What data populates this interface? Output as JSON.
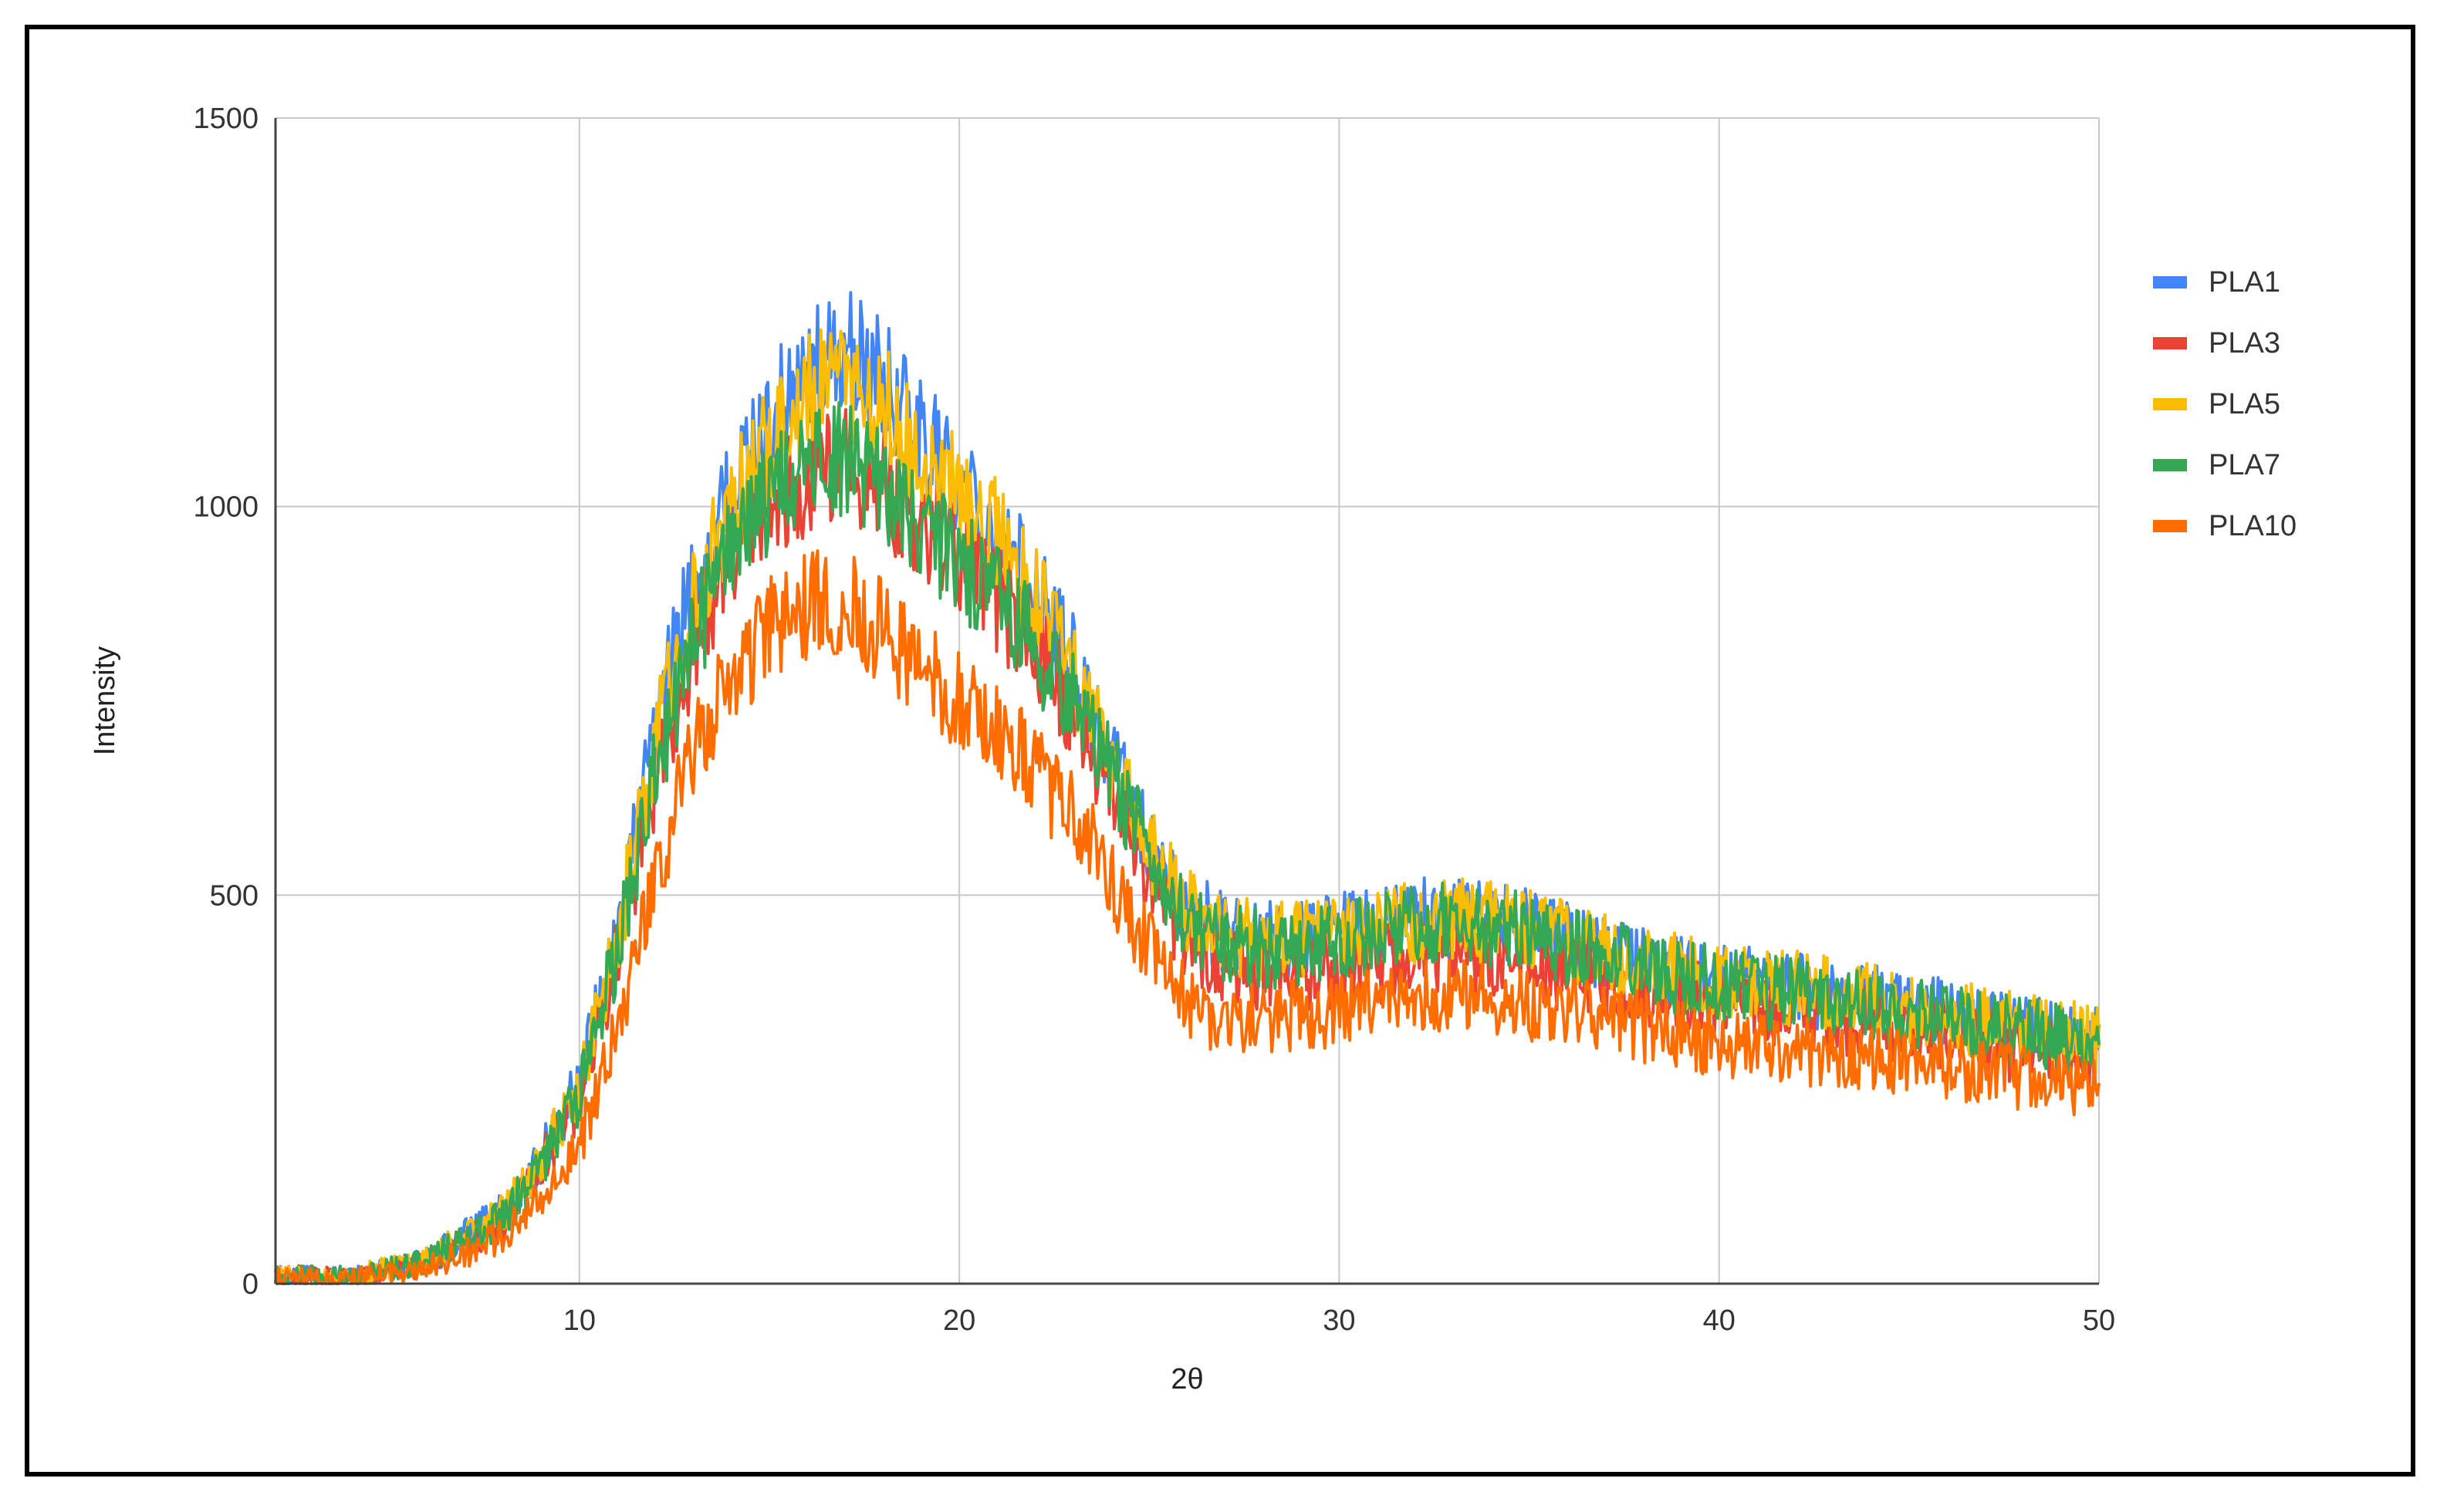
{
  "chart_data": {
    "type": "line",
    "title": "",
    "xlabel": "2θ",
    "ylabel": "Intensity",
    "xlim": [
      2,
      50
    ],
    "ylim": [
      0,
      1500
    ],
    "x_ticks": [
      10,
      20,
      30,
      40,
      50
    ],
    "y_ticks": [
      0,
      500,
      1000,
      1500
    ],
    "grid": true,
    "legend_position": "right",
    "x": [
      2,
      4,
      6,
      8,
      9,
      10,
      11,
      12,
      13,
      14,
      15,
      16,
      17,
      18,
      19,
      20,
      21,
      22,
      23,
      24,
      25,
      26,
      27,
      28,
      29,
      30,
      31,
      32,
      33,
      34,
      35,
      36,
      38,
      40,
      42,
      44,
      46,
      48,
      50
    ],
    "series": [
      {
        "name": "PLA1",
        "color": "#4285F4",
        "values": [
          10,
          10,
          30,
          90,
          160,
          260,
          450,
          720,
          900,
          1020,
          1110,
          1170,
          1200,
          1160,
          1090,
          1030,
          970,
          890,
          800,
          680,
          560,
          480,
          450,
          440,
          440,
          450,
          460,
          470,
          470,
          465,
          455,
          440,
          410,
          390,
          380,
          365,
          345,
          330,
          310
        ]
      },
      {
        "name": "PLA3",
        "color": "#EA4335",
        "values": [
          10,
          10,
          25,
          80,
          150,
          240,
          420,
          650,
          820,
          930,
          1000,
          1040,
          1060,
          1030,
          970,
          930,
          880,
          820,
          740,
          640,
          530,
          440,
          410,
          400,
          400,
          405,
          410,
          420,
          425,
          420,
          410,
          400,
          380,
          365,
          350,
          335,
          320,
          300,
          285
        ]
      },
      {
        "name": "PLA5",
        "color": "#FBBC04",
        "values": [
          10,
          10,
          30,
          90,
          160,
          255,
          445,
          700,
          880,
          1000,
          1080,
          1140,
          1160,
          1130,
          1070,
          1020,
          960,
          880,
          790,
          680,
          560,
          480,
          450,
          440,
          440,
          450,
          460,
          465,
          470,
          465,
          455,
          440,
          410,
          390,
          380,
          365,
          345,
          330,
          315
        ]
      },
      {
        "name": "PLA7",
        "color": "#34A853",
        "values": [
          10,
          10,
          28,
          85,
          150,
          240,
          430,
          660,
          830,
          940,
          1010,
          1050,
          1060,
          1020,
          970,
          930,
          880,
          820,
          750,
          660,
          550,
          470,
          440,
          430,
          435,
          440,
          450,
          460,
          465,
          460,
          450,
          435,
          405,
          385,
          370,
          355,
          340,
          325,
          305
        ]
      },
      {
        "name": "PLA10",
        "color": "#FF6D01",
        "values": [
          8,
          8,
          20,
          60,
          110,
          180,
          330,
          530,
          680,
          780,
          840,
          870,
          880,
          840,
          790,
          750,
          710,
          660,
          600,
          520,
          430,
          360,
          340,
          340,
          345,
          350,
          360,
          370,
          375,
          370,
          360,
          350,
          330,
          310,
          300,
          290,
          280,
          265,
          250
        ]
      }
    ]
  }
}
